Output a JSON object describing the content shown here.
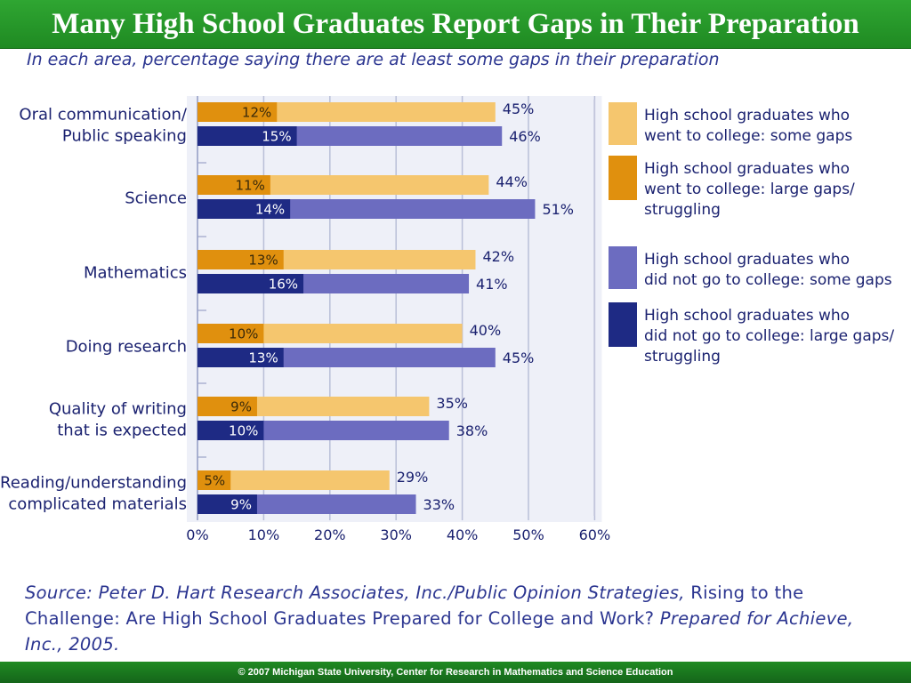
{
  "title": "Many High School Graduates Report Gaps in Their Preparation",
  "subtitle": "In each area, percentage saying there are at least some gaps in their preparation",
  "chart_data": {
    "type": "bar",
    "orientation": "horizontal",
    "categories": [
      [
        "Oral communication/",
        "Public speaking"
      ],
      [
        "Science"
      ],
      [
        "Mathematics"
      ],
      [
        "Doing research"
      ],
      [
        "Quality of writing",
        "that is expected"
      ],
      [
        "Reading/understanding",
        "complicated materials"
      ]
    ],
    "groups": [
      {
        "total_series": "High school graduates who went to college: some gaps",
        "part_series": "High school graduates who went to college: large gaps/ struggling",
        "total": [
          45,
          44,
          42,
          40,
          35,
          29
        ],
        "part": [
          12,
          11,
          13,
          10,
          9,
          5
        ],
        "total_labels": [
          "45%",
          "44%",
          "42%",
          "40%",
          "35%",
          "29%"
        ],
        "part_labels": [
          "12%",
          "11%",
          "13%",
          "10%",
          "9%",
          "5%"
        ]
      },
      {
        "total_series": "High school graduates who did not go to college: some gaps",
        "part_series": "High school graduates who did not go to college: large gaps/ struggling",
        "total": [
          46,
          51,
          41,
          45,
          38,
          33
        ],
        "part": [
          15,
          14,
          16,
          13,
          10,
          9
        ],
        "total_labels": [
          "46%",
          "51%",
          "41%",
          "45%",
          "38%",
          "33%"
        ],
        "part_labels": [
          "15%",
          "14%",
          "16%",
          "13%",
          "10%",
          "9%"
        ]
      }
    ],
    "xlim": [
      0,
      60
    ],
    "xticks": [
      "0%",
      "10%",
      "20%",
      "30%",
      "40%",
      "50%",
      "60%"
    ],
    "grid": true,
    "legend_position": "right",
    "legend": [
      {
        "lines": [
          "High school graduates who",
          "went to college: some gaps"
        ],
        "color": "#f5c66e"
      },
      {
        "lines": [
          "High school graduates who",
          "went to college: large gaps/",
          "struggling"
        ],
        "color": "#e0900e"
      },
      {
        "lines": [
          "High school graduates who",
          "did not go to college: some gaps"
        ],
        "color": "#6c6cc0"
      },
      {
        "lines": [
          "High school graduates who",
          "did not go to college: large gaps/",
          "struggling"
        ],
        "color": "#1e2a84"
      }
    ],
    "colors": {
      "college_some": "#f5c66e",
      "college_large": "#e0900e",
      "nocollege_some": "#6c6cc0",
      "nocollege_large": "#1e2a84"
    }
  },
  "source": {
    "prefix": "Source: Peter D. Hart Research Associates, Inc./Public Opinion Strategies,",
    "middle": " Rising to the Challenge: Are High School Graduates Prepared for College and Work?",
    "suffix": " Prepared for Achieve, Inc., 2005."
  },
  "footer": "© 2007 Michigan State University,  Center for Research in Mathematics and Science Education"
}
